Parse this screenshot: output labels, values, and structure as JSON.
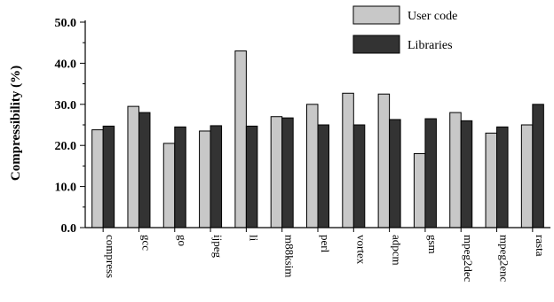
{
  "chart_data": {
    "type": "bar",
    "title": "",
    "xlabel": "",
    "ylabel": "Compressibility (%)",
    "ylim": [
      0,
      50
    ],
    "yticks": [
      "0.0",
      "10.0",
      "20.0",
      "30.0",
      "40.0",
      "50.0"
    ],
    "grid": false,
    "legend_position": "top-right",
    "categories": [
      "compress",
      "gcc",
      "go",
      "ijpeg",
      "li",
      "m88ksim",
      "perl",
      "vortex",
      "adpcm",
      "gsm",
      "mpeg2dec",
      "mpeg2enc",
      "rasta"
    ],
    "series": [
      {
        "name": "User code",
        "color": "#c8c8c8",
        "values": [
          23.8,
          29.5,
          20.5,
          23.5,
          43.0,
          27.0,
          30.0,
          32.7,
          32.5,
          18.0,
          28.0,
          23.0,
          25.0
        ]
      },
      {
        "name": "Libraries",
        "color": "#333333",
        "values": [
          24.7,
          28.0,
          24.5,
          24.8,
          24.7,
          26.7,
          25.0,
          25.0,
          26.3,
          26.5,
          26.0,
          24.5,
          30.0
        ]
      }
    ]
  }
}
